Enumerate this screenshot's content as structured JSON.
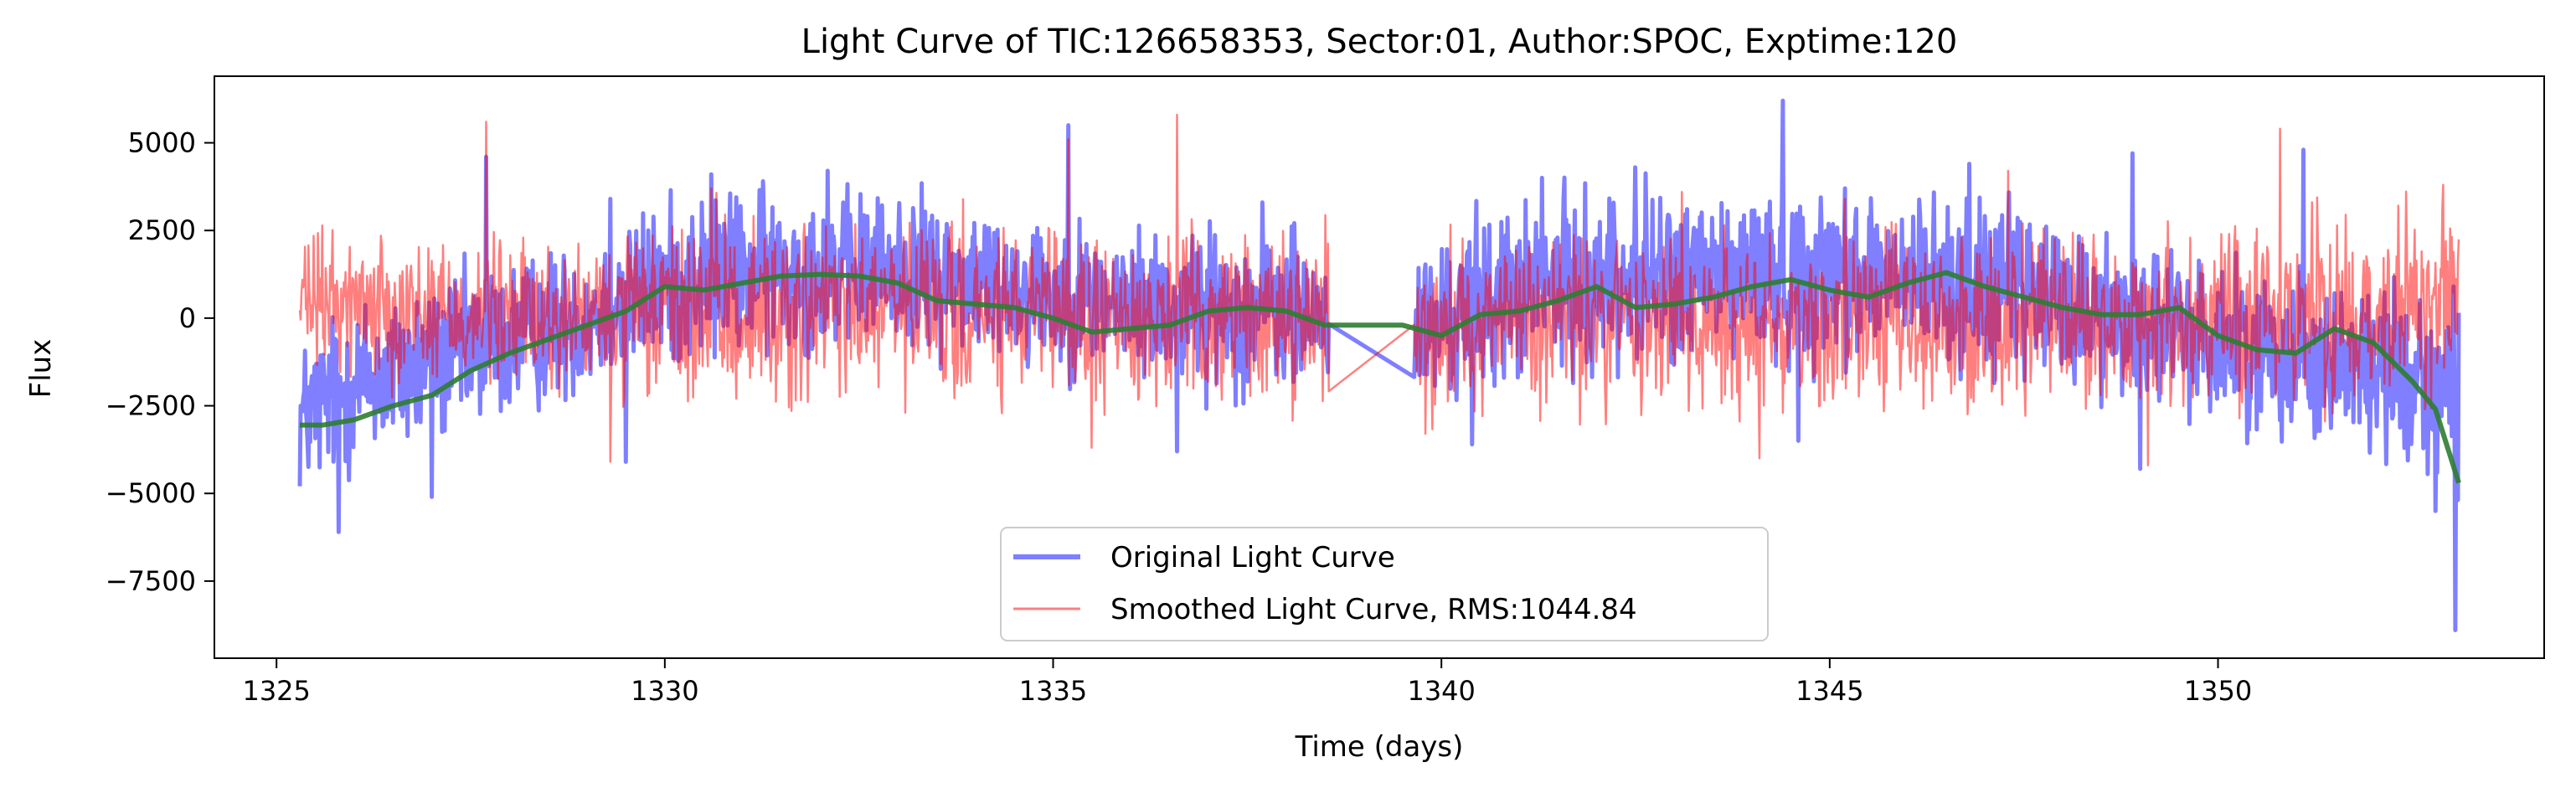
{
  "chart_data": {
    "type": "line",
    "title": "Light Curve of TIC:126658353, Sector:01, Author:SPOC, Exptime:120",
    "xlabel": "Time (days)",
    "ylabel": "Flux",
    "xlim": [
      1324.2,
      1354.2
    ],
    "ylim": [
      -9700,
      6900
    ],
    "grid": false,
    "legend_position": "lower-center",
    "x_ticks": [
      1325,
      1330,
      1335,
      1340,
      1345,
      1350
    ],
    "x_tick_labels": [
      "1325",
      "1330",
      "1335",
      "1340",
      "1345",
      "1350"
    ],
    "y_ticks": [
      5000,
      2500,
      0,
      -2500,
      -5000,
      -7500
    ],
    "y_tick_labels": [
      "5000",
      "2500",
      "0",
      "−2500",
      "−5000",
      "−7500"
    ],
    "gap": [
      1338.55,
      1339.65
    ],
    "series": [
      {
        "name": "Original Light Curve",
        "color": "#0000ff",
        "alpha": 0.5,
        "line_width": 5,
        "envelope": {
          "x": [
            1325.3,
            1326.0,
            1327.0,
            1328.0,
            1329.0,
            1330.0,
            1331.0,
            1332.0,
            1333.0,
            1334.0,
            1335.0,
            1336.0,
            1337.0,
            1338.0,
            1338.5,
            1339.7,
            1340.5,
            1341.5,
            1342.5,
            1343.5,
            1344.5,
            1345.5,
            1346.5,
            1347.5,
            1348.5,
            1349.5,
            1350.5,
            1351.5,
            1352.5,
            1353.1
          ],
          "upper": [
            -500,
            800,
            1200,
            1800,
            2300,
            3500,
            3800,
            3700,
            3700,
            3400,
            3000,
            2600,
            2700,
            2600,
            2500,
            1800,
            3200,
            3600,
            3800,
            3800,
            3900,
            3800,
            3500,
            3300,
            2700,
            1900,
            1600,
            1200,
            1100,
            800
          ],
          "lower": [
            -5200,
            -4500,
            -3800,
            -3000,
            -2200,
            -1600,
            -1200,
            -1000,
            -900,
            -1300,
            -1600,
            -1800,
            -2100,
            -2300,
            -2600,
            -2800,
            -2200,
            -1700,
            -1500,
            -1400,
            -1400,
            -1400,
            -1600,
            -1900,
            -2400,
            -2800,
            -3300,
            -3700,
            -4300,
            -5000
          ]
        },
        "spikes": [
          {
            "x": 1327.7,
            "y": 4600
          },
          {
            "x": 1329.3,
            "y": 3400
          },
          {
            "x": 1330.6,
            "y": 4100
          },
          {
            "x": 1332.1,
            "y": 4200
          },
          {
            "x": 1335.2,
            "y": 5500
          },
          {
            "x": 1336.6,
            "y": 6000
          },
          {
            "x": 1337.7,
            "y": 3300
          },
          {
            "x": 1341.3,
            "y": 4000
          },
          {
            "x": 1342.5,
            "y": 4300
          },
          {
            "x": 1344.4,
            "y": 6200
          },
          {
            "x": 1345.2,
            "y": 3700
          },
          {
            "x": 1346.8,
            "y": 4400
          },
          {
            "x": 1348.9,
            "y": 4700
          },
          {
            "x": 1351.1,
            "y": 4800
          },
          {
            "x": 1325.8,
            "y": -6100
          },
          {
            "x": 1327.0,
            "y": -5100
          },
          {
            "x": 1329.5,
            "y": -4100
          },
          {
            "x": 1336.6,
            "y": -3800
          },
          {
            "x": 1340.4,
            "y": -3600
          },
          {
            "x": 1344.6,
            "y": -3500
          },
          {
            "x": 1349.0,
            "y": -4300
          },
          {
            "x": 1352.8,
            "y": -5500
          },
          {
            "x": 1353.05,
            "y": -8900
          }
        ]
      },
      {
        "name": "Smoothed Light Curve, RMS:1044.84",
        "color": "#ff0000",
        "alpha": 0.5,
        "line_width": 2.5,
        "envelope": {
          "x": [
            1325.3,
            1326.0,
            1327.0,
            1328.0,
            1329.0,
            1330.0,
            1331.0,
            1332.0,
            1333.0,
            1334.0,
            1335.0,
            1336.0,
            1337.0,
            1338.0,
            1338.5,
            1339.7,
            1340.5,
            1341.5,
            1342.5,
            1343.5,
            1344.5,
            1345.5,
            1346.5,
            1347.5,
            1348.5,
            1349.5,
            1350.5,
            1351.5,
            1352.5,
            1353.1
          ],
          "upper": [
            2500,
            2600,
            2500,
            2300,
            2300,
            2800,
            3000,
            3000,
            3000,
            2700,
            2500,
            2400,
            2500,
            2600,
            2600,
            2100,
            2600,
            2700,
            2900,
            2800,
            2900,
            2800,
            2700,
            2600,
            2500,
            2600,
            2800,
            3100,
            3300,
            3600
          ],
          "lower": [
            -1600,
            -1700,
            -2000,
            -2200,
            -2400,
            -2500,
            -2700,
            -2700,
            -2600,
            -2600,
            -2600,
            -2500,
            -2500,
            -2500,
            -2500,
            -2600,
            -2700,
            -2900,
            -3000,
            -3100,
            -3100,
            -3000,
            -2900,
            -2900,
            -2900,
            -2900,
            -2700,
            -2600,
            -2400,
            -2200
          ]
        },
        "spikes": [
          {
            "x": 1327.7,
            "y": 5600
          },
          {
            "x": 1330.6,
            "y": 3700
          },
          {
            "x": 1335.2,
            "y": 5100
          },
          {
            "x": 1336.6,
            "y": 5800
          },
          {
            "x": 1343.1,
            "y": 3600
          },
          {
            "x": 1345.2,
            "y": 3400
          },
          {
            "x": 1347.3,
            "y": 4200
          },
          {
            "x": 1350.8,
            "y": 5400
          },
          {
            "x": 1352.9,
            "y": 3800
          },
          {
            "x": 1329.3,
            "y": -4100
          },
          {
            "x": 1335.5,
            "y": -3700
          },
          {
            "x": 1339.8,
            "y": -3300
          },
          {
            "x": 1344.1,
            "y": -4000
          },
          {
            "x": 1349.1,
            "y": -4200
          }
        ]
      },
      {
        "name": "",
        "color": "#2e7d32",
        "alpha": 0.9,
        "line_width": 6,
        "x": [
          1325.3,
          1325.6,
          1326.0,
          1326.5,
          1327.0,
          1327.5,
          1328.0,
          1328.5,
          1329.0,
          1329.5,
          1330.0,
          1330.5,
          1331.0,
          1331.5,
          1332.0,
          1332.5,
          1333.0,
          1333.5,
          1334.0,
          1334.5,
          1335.0,
          1335.5,
          1336.0,
          1336.5,
          1337.0,
          1337.5,
          1338.0,
          1338.5,
          1339.0,
          1339.5,
          1340.0,
          1340.5,
          1341.0,
          1341.5,
          1342.0,
          1342.5,
          1343.0,
          1343.5,
          1344.0,
          1344.5,
          1345.0,
          1345.5,
          1346.0,
          1346.5,
          1347.0,
          1347.5,
          1348.0,
          1348.5,
          1349.0,
          1349.5,
          1350.0,
          1350.5,
          1351.0,
          1351.5,
          1352.0,
          1352.5,
          1352.8,
          1353.1
        ],
        "y": [
          -3050,
          -3050,
          -2900,
          -2500,
          -2200,
          -1500,
          -1000,
          -600,
          -200,
          200,
          900,
          800,
          1000,
          1200,
          1250,
          1200,
          1000,
          500,
          400,
          300,
          0,
          -400,
          -300,
          -200,
          200,
          300,
          200,
          -200,
          -200,
          -200,
          -500,
          100,
          200,
          500,
          900,
          300,
          400,
          600,
          900,
          1100,
          800,
          600,
          1000,
          1300,
          900,
          600,
          300,
          100,
          100,
          300,
          -500,
          -900,
          -1000,
          -300,
          -700,
          -1800,
          -2600,
          -4700
        ]
      }
    ]
  }
}
